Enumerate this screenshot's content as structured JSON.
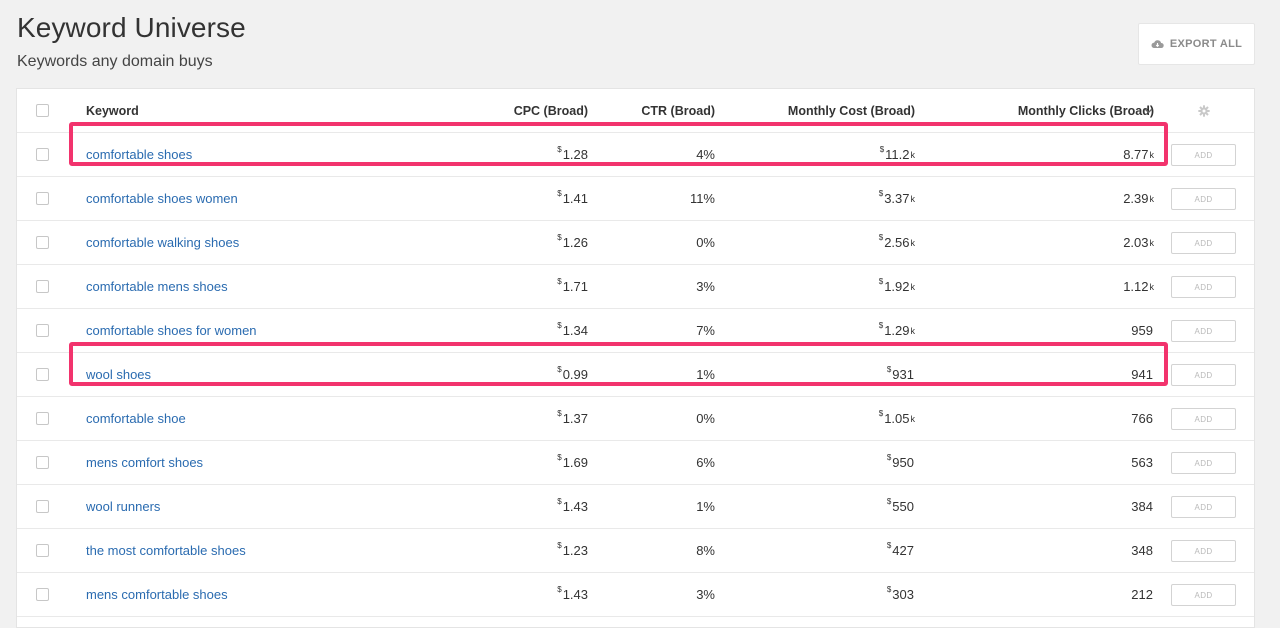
{
  "page": {
    "title": "Keyword Universe",
    "subtitle": "Keywords any domain buys",
    "export_label": "EXPORT ALL",
    "export_icon": "cloud-download-icon",
    "highlight_color": "#f2336d",
    "link_color": "#2a6bb0"
  },
  "table": {
    "columns": {
      "keyword": "Keyword",
      "cpc": "CPC (Broad)",
      "ctr": "CTR (Broad)",
      "cost": "Monthly Cost (Broad)",
      "clicks": "Monthly Clicks (Broad)"
    },
    "sort_icon": "chevron-down-icon",
    "settings_icon": "gear-icon",
    "add_label": "ADD",
    "currency": "$",
    "rows": [
      {
        "keyword": "comfortable shoes",
        "cpc": "1.28",
        "ctr": "4%",
        "cost": "11.2",
        "cost_suffix": "k",
        "clicks": "8.77",
        "clicks_suffix": "k",
        "highlighted": true
      },
      {
        "keyword": "comfortable shoes women",
        "cpc": "1.41",
        "ctr": "11%",
        "cost": "3.37",
        "cost_suffix": "k",
        "clicks": "2.39",
        "clicks_suffix": "k",
        "highlighted": false
      },
      {
        "keyword": "comfortable walking shoes",
        "cpc": "1.26",
        "ctr": "0%",
        "cost": "2.56",
        "cost_suffix": "k",
        "clicks": "2.03",
        "clicks_suffix": "k",
        "highlighted": false
      },
      {
        "keyword": "comfortable mens shoes",
        "cpc": "1.71",
        "ctr": "3%",
        "cost": "1.92",
        "cost_suffix": "k",
        "clicks": "1.12",
        "clicks_suffix": "k",
        "highlighted": false
      },
      {
        "keyword": "comfortable shoes for women",
        "cpc": "1.34",
        "ctr": "7%",
        "cost": "1.29",
        "cost_suffix": "k",
        "clicks": "959",
        "clicks_suffix": "",
        "highlighted": false
      },
      {
        "keyword": "wool shoes",
        "cpc": "0.99",
        "ctr": "1%",
        "cost": "931",
        "cost_suffix": "",
        "clicks": "941",
        "clicks_suffix": "",
        "highlighted": true
      },
      {
        "keyword": "comfortable shoe",
        "cpc": "1.37",
        "ctr": "0%",
        "cost": "1.05",
        "cost_suffix": "k",
        "clicks": "766",
        "clicks_suffix": "",
        "highlighted": false
      },
      {
        "keyword": "mens comfort shoes",
        "cpc": "1.69",
        "ctr": "6%",
        "cost": "950",
        "cost_suffix": "",
        "clicks": "563",
        "clicks_suffix": "",
        "highlighted": false
      },
      {
        "keyword": "wool runners",
        "cpc": "1.43",
        "ctr": "1%",
        "cost": "550",
        "cost_suffix": "",
        "clicks": "384",
        "clicks_suffix": "",
        "highlighted": false
      },
      {
        "keyword": "the most comfortable shoes",
        "cpc": "1.23",
        "ctr": "8%",
        "cost": "427",
        "cost_suffix": "",
        "clicks": "348",
        "clicks_suffix": "",
        "highlighted": false
      },
      {
        "keyword": "mens comfortable shoes",
        "cpc": "1.43",
        "ctr": "3%",
        "cost": "303",
        "cost_suffix": "",
        "clicks": "212",
        "clicks_suffix": "",
        "highlighted": false
      }
    ]
  }
}
